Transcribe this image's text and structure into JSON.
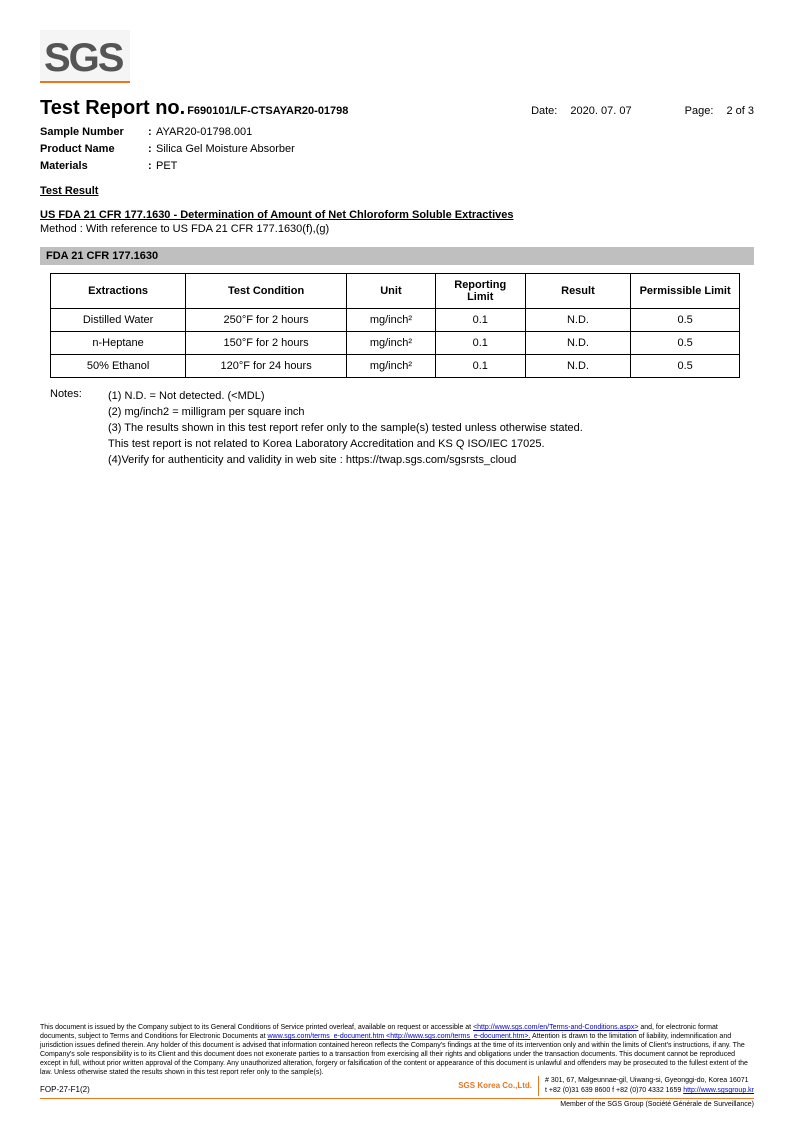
{
  "logo": "SGS",
  "header": {
    "title": "Test Report no.",
    "report_no": "F690101/LF-CTSAYAR20-01798",
    "date_label": "Date:",
    "date": "2020. 07. 07",
    "page_label": "Page:",
    "page": "2 of 3"
  },
  "meta": {
    "sample_number_label": "Sample Number",
    "sample_number": "AYAR20-01798.001",
    "product_name_label": "Product Name",
    "product_name": "Silica Gel Moisture Absorber",
    "materials_label": "Materials",
    "materials": "PET"
  },
  "sections": {
    "test_result": "Test Result",
    "regulation_title": "US FDA 21 CFR 177.1630 - Determination of Amount of Net Chloroform Soluble Extractives",
    "method": "Method : With reference to US FDA 21 CFR 177.1630(f),(g)",
    "grey_bar": "FDA 21 CFR 177.1630"
  },
  "table": {
    "headers": [
      "Extractions",
      "Test Condition",
      "Unit",
      "Reporting Limit",
      "Result",
      "Permissible Limit"
    ],
    "col_widths": [
      "130px",
      "160px",
      "80px",
      "80px",
      "100px",
      "100px"
    ],
    "rows": [
      [
        "Distilled Water",
        "250°F for 2 hours",
        "mg/inch²",
        "0.1",
        "N.D.",
        "0.5"
      ],
      [
        "n-Heptane",
        "150°F for 2 hours",
        "mg/inch²",
        "0.1",
        "N.D.",
        "0.5"
      ],
      [
        "50% Ethanol",
        "120°F for 24 hours",
        "mg/inch²",
        "0.1",
        "N.D.",
        "0.5"
      ]
    ]
  },
  "notes": {
    "label": "Notes:",
    "lines": [
      "(1) N.D. = Not detected. (<MDL)",
      "(2) mg/inch2 = milligram per square inch",
      "(3) The results shown in this test report refer only to the sample(s) tested unless otherwise stated.",
      "This test report is not related to Korea Laboratory Accreditation and KS Q ISO/IEC 17025.",
      "(4)Verify for authenticity and validity in web site : https://twap.sgs.com/sgsrsts_cloud"
    ]
  },
  "footer": {
    "disclaimer_pre": "This document is issued by the Company subject to its General Conditions of Service printed overleaf, available on request or accessible at ",
    "link1": "<http://www.sgs.com/en/Terms-and-Conditions.aspx>",
    "disclaimer_mid1": " and, for electronic format documents, subject to Terms and Conditions for Electronic Documents at ",
    "link2": "www.sgs.com/terms_e-document.htm <http://www.sgs.com/terms_e-document.htm>.",
    "disclaimer_rest": " Attention is drawn to the limitation of liability, indemnification and jurisdiction issues defined therein. Any holder of this document is advised that information contained hereon reflects the Company's findings at the time of its intervention only and within the limits of Client's instructions, if any. The Company's sole responsibility is to its Client and this document does not exonerate parties to a transaction from exercising all their rights and obligations under the transaction documents. This document cannot be reproduced except in full, without prior written approval of the Company. Any unauthorized alteration, forgery or falsification of the content or appearance of this document is unlawful and offenders may be prosecuted to the fullest extent of the law. Unless otherwise stated the results shown in this test report refer only to the sample(s).",
    "form_no": "FOP-27-F1(2)",
    "company": "SGS Korea Co.,Ltd.",
    "address1": "# 301, 67, Malgeunnae-gil, Uiwang-si, Gyeonggi-do, Korea 16071",
    "address2_pre": "t +82 (0)31 639 8600 f +82 (0)70 4332 1659 ",
    "address2_link": "http://www.sgsgroup.kr",
    "member": "Member of the SGS Group (Société Générale de Surveillance)"
  }
}
